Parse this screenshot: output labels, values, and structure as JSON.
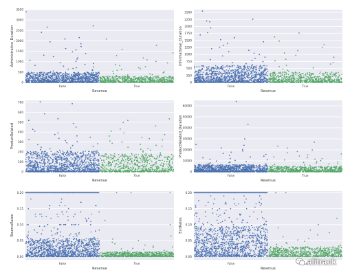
{
  "colors": {
    "false_series": "#4c72b0",
    "true_series": "#55a868",
    "plot_bg": "#eaeaf2",
    "grid": "#ffffff",
    "text": "#333333"
  },
  "watermark": {
    "text": "alitrack",
    "icon": "wechat-logo-icon"
  },
  "chart_data": [
    {
      "type": "scatter",
      "title": "",
      "xlabel": "Revenue",
      "ylabel": "Administrative_Duration",
      "categories": [
        "False",
        "True"
      ],
      "ylim": [
        0,
        3500
      ],
      "yticks": [
        "0",
        "500",
        "1000",
        "1500",
        "2000",
        "2500",
        "3000",
        "3500"
      ],
      "series": [
        {
          "name": "False",
          "values": [
            3398,
            2720,
            2657,
            2407,
            2156,
            2087,
            1952,
            1863,
            1728,
            1632,
            1564,
            1471,
            1388,
            1310,
            1246,
            1184,
            1122,
            1064,
            1012,
            958,
            912,
            867,
            823,
            784,
            746,
            709,
            672,
            640,
            608,
            578,
            548,
            520,
            494,
            470,
            446,
            424,
            402,
            382,
            362,
            343,
            325,
            308,
            291,
            275,
            260,
            246,
            232,
            219,
            206,
            194,
            182,
            171,
            160,
            150,
            140,
            130,
            121,
            112,
            104,
            96,
            88,
            80,
            72,
            64,
            56,
            48,
            40,
            32,
            24,
            16,
            8,
            0
          ]
        },
        {
          "name": "True",
          "values": [
            2086,
            1780,
            1580,
            1420,
            1290,
            1180,
            1090,
            1010,
            940,
            870,
            810,
            760,
            710,
            660,
            620,
            580,
            540,
            505,
            470,
            440,
            410,
            380,
            355,
            330,
            305,
            282,
            260,
            240,
            220,
            200,
            182,
            165,
            148,
            132,
            118,
            104,
            90,
            76,
            62,
            48,
            34,
            20,
            8,
            0
          ]
        }
      ]
    },
    {
      "type": "scatter",
      "title": "",
      "xlabel": "Revenue",
      "ylabel": "Informational_Duration",
      "categories": [
        "False",
        "True"
      ],
      "ylim": [
        0,
        2600
      ],
      "yticks": [
        "0",
        "250",
        "500",
        "750",
        "1000",
        "1250",
        "1500",
        "1750",
        "2000",
        "2250",
        "2500"
      ],
      "series": [
        {
          "name": "False",
          "values": [
            2549,
            2256,
            2195,
            2166,
            1949,
            1779,
            1697,
            1602,
            1528,
            1453,
            1391,
            1322,
            1260,
            1204,
            1148,
            1096,
            1044,
            996,
            948,
            904,
            860,
            820,
            780,
            742,
            706,
            670,
            636,
            604,
            572,
            542,
            512,
            484,
            458,
            432,
            408,
            384,
            362,
            340,
            320,
            300,
            280,
            262,
            244,
            226,
            210,
            194,
            178,
            164,
            150,
            136,
            122,
            110,
            98,
            86,
            74,
            62,
            50,
            38,
            26,
            14,
            0
          ]
        },
        {
          "name": "True",
          "values": [
            1767,
            1626,
            1480,
            1350,
            1240,
            1140,
            1050,
            970,
            900,
            830,
            770,
            715,
            660,
            610,
            565,
            520,
            480,
            440,
            405,
            370,
            340,
            310,
            282,
            255,
            230,
            205,
            182,
            160,
            140,
            120,
            100,
            80,
            60,
            40,
            20,
            0
          ]
        }
      ]
    },
    {
      "type": "scatter",
      "title": "",
      "xlabel": "Revenue",
      "ylabel": "ProductRelated",
      "categories": [
        "False",
        "True"
      ],
      "ylim": [
        0,
        720
      ],
      "yticks": [
        "0",
        "100",
        "200",
        "300",
        "400",
        "500",
        "600",
        "700"
      ],
      "series": [
        {
          "name": "False",
          "values": [
            705,
            686,
            584,
            535,
            518,
            486,
            451,
            428,
            409,
            392,
            376,
            362,
            349,
            337,
            325,
            314,
            303,
            293,
            283,
            274,
            265,
            256,
            248,
            240,
            232,
            224,
            217,
            210,
            203,
            196,
            189,
            182,
            176,
            170,
            164,
            158,
            152,
            146,
            140,
            134,
            128,
            122,
            116,
            110,
            104,
            98,
            92,
            86,
            80,
            74,
            68,
            62,
            56,
            50,
            44,
            38,
            32,
            26,
            20,
            14,
            8,
            2
          ]
        },
        {
          "name": "True",
          "values": [
            534,
            518,
            498,
            462,
            431,
            410,
            392,
            376,
            361,
            347,
            334,
            322,
            310,
            299,
            288,
            277,
            267,
            257,
            247,
            237,
            228,
            219,
            210,
            201,
            192,
            183,
            174,
            165,
            156,
            147,
            138,
            129,
            120,
            111,
            102,
            93,
            84,
            75,
            66,
            57,
            48,
            39,
            30,
            21,
            12,
            3
          ]
        }
      ]
    },
    {
      "type": "scatter",
      "title": "",
      "xlabel": "Revenue",
      "ylabel": "ProductRelated_Duration",
      "categories": [
        "False",
        "True"
      ],
      "ylim": [
        0,
        65000
      ],
      "yticks": [
        "0",
        "10000",
        "20000",
        "30000",
        "40000",
        "50000",
        "60000"
      ],
      "series": [
        {
          "name": "False",
          "values": [
            63974,
            43172,
            29971,
            24844,
            24096,
            21672,
            20198,
            18956,
            17845,
            16832,
            15901,
            15034,
            14230,
            13484,
            12780,
            12120,
            11500,
            10910,
            10360,
            9840,
            9350,
            8880,
            8430,
            8010,
            7610,
            7230,
            6860,
            6510,
            6180,
            5860,
            5560,
            5270,
            4990,
            4720,
            4460,
            4210,
            3970,
            3740,
            3520,
            3300,
            3090,
            2890,
            2700,
            2510,
            2330,
            2160,
            1990,
            1830,
            1670,
            1520,
            1370,
            1230,
            1090,
            950,
            820,
            690,
            560,
            430,
            300,
            170,
            40
          ]
        },
        {
          "name": "True",
          "values": [
            27009,
            23342,
            21610,
            19871,
            18512,
            17330,
            16280,
            15320,
            14440,
            13620,
            12850,
            12130,
            11450,
            10810,
            10200,
            9620,
            9070,
            8550,
            8050,
            7570,
            7110,
            6670,
            6250,
            5850,
            5460,
            5090,
            4740,
            4400,
            4070,
            3760,
            3460,
            3170,
            2890,
            2620,
            2360,
            2110,
            1870,
            1640,
            1420,
            1210,
            1000,
            800,
            600,
            400,
            200,
            0
          ]
        }
      ]
    },
    {
      "type": "scatter",
      "title": "",
      "xlabel": "Revenue",
      "ylabel": "BounceRates",
      "categories": [
        "False",
        "True"
      ],
      "ylim": [
        -0.01,
        0.205
      ],
      "yticks": [
        "0.00",
        "0.05",
        "0.10",
        "0.15",
        "0.20"
      ],
      "series": [
        {
          "name": "False",
          "values": [
            0.2,
            0.2,
            0.2,
            0.2,
            0.2,
            0.2,
            0.2,
            0.2,
            0.2,
            0.2,
            0.18,
            0.17,
            0.16,
            0.15,
            0.14,
            0.133,
            0.125,
            0.12,
            0.114,
            0.11,
            0.1,
            0.1,
            0.1,
            0.1,
            0.1,
            0.095,
            0.09,
            0.086,
            0.083,
            0.08,
            0.077,
            0.075,
            0.071,
            0.067,
            0.065,
            0.062,
            0.06,
            0.057,
            0.055,
            0.052,
            0.05,
            0.05,
            0.05,
            0.047,
            0.045,
            0.043,
            0.04,
            0.038,
            0.036,
            0.034,
            0.033,
            0.031,
            0.03,
            0.029,
            0.028,
            0.026,
            0.025,
            0.024,
            0.023,
            0.022,
            0.021,
            0.02,
            0.019,
            0.018,
            0.017,
            0.016,
            0.015,
            0.014,
            0.013,
            0.012,
            0.011,
            0.01,
            0.009,
            0.008,
            0.007,
            0.006,
            0.005,
            0.004,
            0.003,
            0.002,
            0.001,
            0.0,
            0.0,
            0.0
          ]
        },
        {
          "name": "True",
          "values": [
            0.2,
            0.2,
            0.2,
            0.113,
            0.1,
            0.065,
            0.055,
            0.05,
            0.045,
            0.04,
            0.036,
            0.033,
            0.03,
            0.028,
            0.026,
            0.024,
            0.022,
            0.02,
            0.018,
            0.017,
            0.016,
            0.015,
            0.014,
            0.013,
            0.012,
            0.011,
            0.01,
            0.009,
            0.008,
            0.007,
            0.006,
            0.005,
            0.004,
            0.003,
            0.002,
            0.001,
            0.0,
            0.0,
            0.0
          ]
        }
      ]
    },
    {
      "type": "scatter",
      "title": "",
      "xlabel": "Revenue",
      "ylabel": "ExitRates",
      "categories": [
        "False",
        "True"
      ],
      "ylim": [
        -0.01,
        0.205
      ],
      "yticks": [
        "0.00",
        "0.05",
        "0.10",
        "0.15",
        "0.20"
      ],
      "series": [
        {
          "name": "False",
          "values": [
            0.2,
            0.2,
            0.2,
            0.2,
            0.2,
            0.2,
            0.2,
            0.2,
            0.2,
            0.2,
            0.19,
            0.18,
            0.175,
            0.17,
            0.165,
            0.16,
            0.155,
            0.15,
            0.145,
            0.14,
            0.136,
            0.133,
            0.13,
            0.126,
            0.122,
            0.118,
            0.114,
            0.11,
            0.107,
            0.104,
            0.1,
            0.1,
            0.1,
            0.097,
            0.094,
            0.091,
            0.088,
            0.085,
            0.082,
            0.08,
            0.078,
            0.075,
            0.072,
            0.07,
            0.067,
            0.065,
            0.062,
            0.06,
            0.058,
            0.055,
            0.053,
            0.05,
            0.048,
            0.046,
            0.044,
            0.042,
            0.04,
            0.038,
            0.036,
            0.034,
            0.032,
            0.03,
            0.028,
            0.026,
            0.024,
            0.022,
            0.02,
            0.018,
            0.016,
            0.014,
            0.012,
            0.01,
            0.008,
            0.006,
            0.004,
            0.002
          ]
        },
        {
          "name": "True",
          "values": [
            0.2,
            0.2,
            0.2,
            0.12,
            0.1,
            0.09,
            0.083,
            0.075,
            0.068,
            0.062,
            0.057,
            0.052,
            0.048,
            0.044,
            0.041,
            0.038,
            0.035,
            0.033,
            0.031,
            0.029,
            0.027,
            0.025,
            0.023,
            0.021,
            0.019,
            0.017,
            0.015,
            0.013,
            0.011,
            0.009,
            0.007,
            0.005,
            0.003,
            0.001
          ]
        }
      ]
    }
  ]
}
